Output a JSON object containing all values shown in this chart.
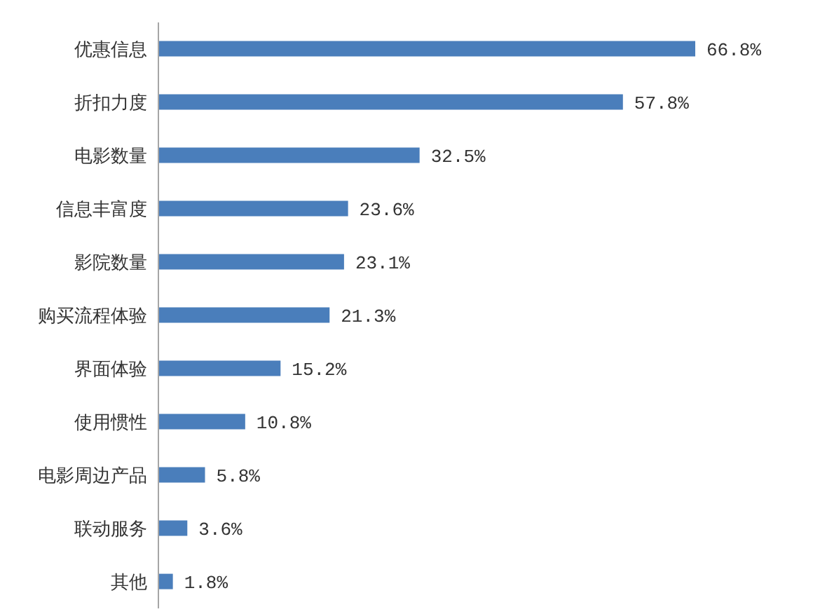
{
  "chart_data": {
    "type": "bar",
    "orientation": "horizontal",
    "categories": [
      "优惠信息",
      "折扣力度",
      "电影数量",
      "信息丰富度",
      "影院数量",
      "购买流程体验",
      "界面体验",
      "使用惯性",
      "电影周边产品",
      "联动服务",
      "其他"
    ],
    "values": [
      66.8,
      57.8,
      32.5,
      23.6,
      23.1,
      21.3,
      15.2,
      10.8,
      5.8,
      3.6,
      1.8
    ],
    "value_labels": [
      "66.8%",
      "57.8%",
      "32.5%",
      "23.6%",
      "23.1%",
      "21.3%",
      "15.2%",
      "10.8%",
      "5.8%",
      "3.6%",
      "1.8%"
    ],
    "color": "#4a7ebb"
  }
}
